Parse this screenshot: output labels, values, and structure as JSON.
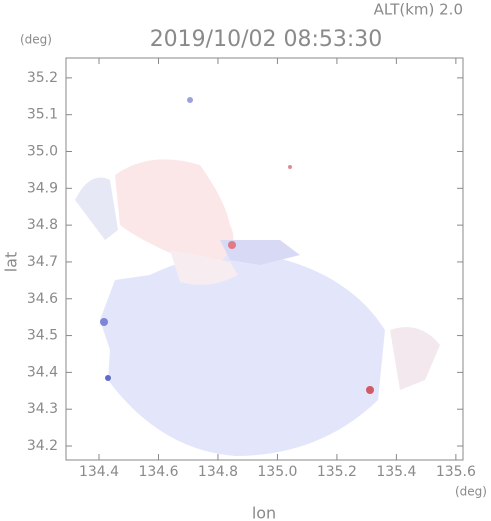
{
  "chart_data": {
    "type": "map",
    "title": "2019/10/02 08:53:30",
    "annotation": "ALT(km) 2.0",
    "xlabel": "lon",
    "ylabel": "lat",
    "xunit": "(deg)",
    "yunit": "(deg)",
    "xlim": [
      134.289,
      135.624
    ],
    "ylim": [
      34.162,
      35.254
    ],
    "xticks": [
      134.4,
      134.6,
      134.8,
      {
        "value": 135.0,
        "label": "135.0"
      },
      135.2,
      135.4,
      135.6
    ],
    "yticks": [
      34.2,
      34.3,
      34.4,
      34.5,
      34.6,
      34.7,
      34.8,
      34.9,
      {
        "value": 35.0,
        "label": "35.0"
      },
      35.1,
      35.2
    ]
  }
}
